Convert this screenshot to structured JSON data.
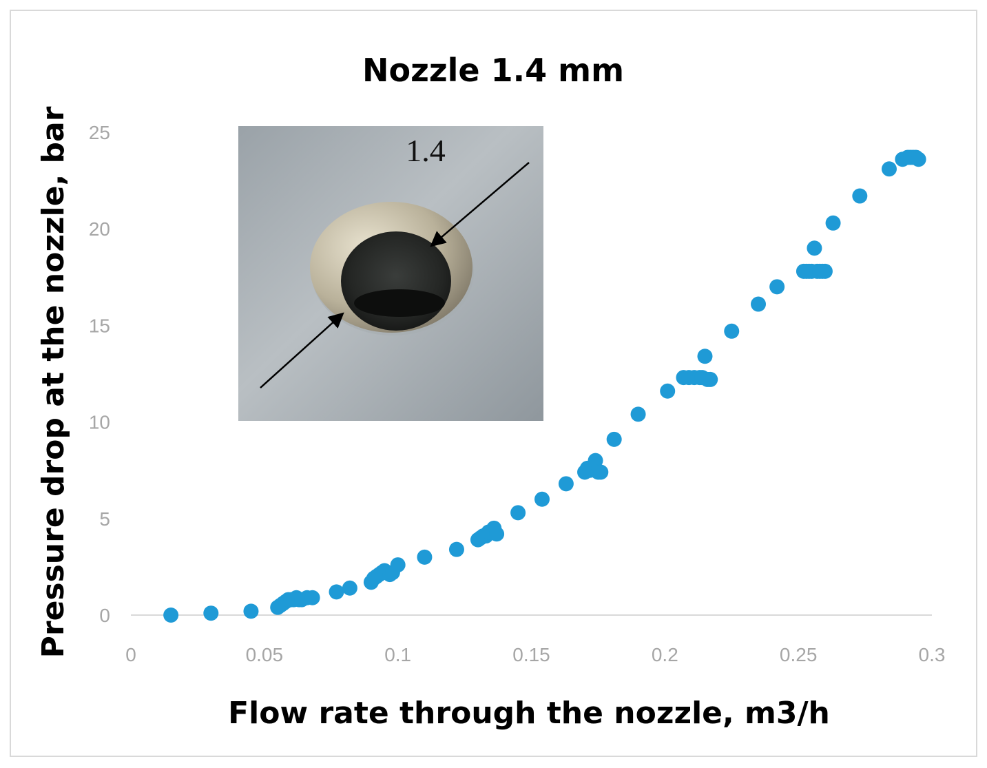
{
  "chart_data": {
    "type": "scatter",
    "title": "Nozzle 1.4 mm",
    "xlabel": "Flow rate through the nozzle, m3/h",
    "ylabel": "Pressure drop at the nozzle, bar",
    "xlim": [
      0,
      0.3
    ],
    "ylim": [
      0,
      25
    ],
    "x_ticks": [
      "0",
      "0.05",
      "0.1",
      "0.15",
      "0.2",
      "0.25",
      "0.3"
    ],
    "y_ticks": [
      "0",
      "5",
      "10",
      "15",
      "20",
      "25"
    ],
    "grid": false,
    "legend": "none",
    "marker_color": "#1f9ad6",
    "inset_image": {
      "label": "1.4"
    },
    "series": [
      {
        "x": [
          0.015,
          0.03,
          0.045,
          0.055,
          0.056,
          0.057,
          0.058,
          0.059,
          0.06,
          0.061,
          0.062,
          0.063,
          0.064,
          0.066,
          0.068,
          0.077,
          0.082,
          0.09,
          0.091,
          0.092,
          0.093,
          0.094,
          0.095,
          0.096,
          0.097,
          0.098,
          0.1,
          0.11,
          0.122,
          0.13,
          0.131,
          0.132,
          0.133,
          0.134,
          0.135,
          0.136,
          0.137,
          0.145,
          0.154,
          0.163,
          0.17,
          0.171,
          0.172,
          0.173,
          0.174,
          0.175,
          0.176,
          0.181,
          0.19,
          0.201,
          0.207,
          0.209,
          0.211,
          0.213,
          0.214,
          0.215,
          0.216,
          0.217,
          0.225,
          0.235,
          0.242,
          0.252,
          0.253,
          0.254,
          0.255,
          0.256,
          0.257,
          0.258,
          0.259,
          0.26,
          0.263,
          0.273,
          0.284,
          0.289,
          0.291,
          0.292,
          0.293,
          0.294,
          0.295
        ],
        "y": [
          0.0,
          0.1,
          0.2,
          0.4,
          0.5,
          0.6,
          0.7,
          0.8,
          0.8,
          0.8,
          0.9,
          0.8,
          0.8,
          0.9,
          0.9,
          1.2,
          1.4,
          1.7,
          1.9,
          2.0,
          2.1,
          2.2,
          2.3,
          2.2,
          2.1,
          2.2,
          2.6,
          3.0,
          3.4,
          3.9,
          4.0,
          4.1,
          4.1,
          4.3,
          4.3,
          4.5,
          4.2,
          5.3,
          6.0,
          6.8,
          7.4,
          7.6,
          7.5,
          7.6,
          8.0,
          7.4,
          7.4,
          9.1,
          10.4,
          11.6,
          12.3,
          12.3,
          12.3,
          12.3,
          12.3,
          13.4,
          12.2,
          12.2,
          14.7,
          16.1,
          17.0,
          17.8,
          17.8,
          17.8,
          17.8,
          19.0,
          17.8,
          17.8,
          17.8,
          17.8,
          20.3,
          21.7,
          23.1,
          23.6,
          23.7,
          23.7,
          23.7,
          23.7,
          23.6
        ]
      }
    ]
  }
}
